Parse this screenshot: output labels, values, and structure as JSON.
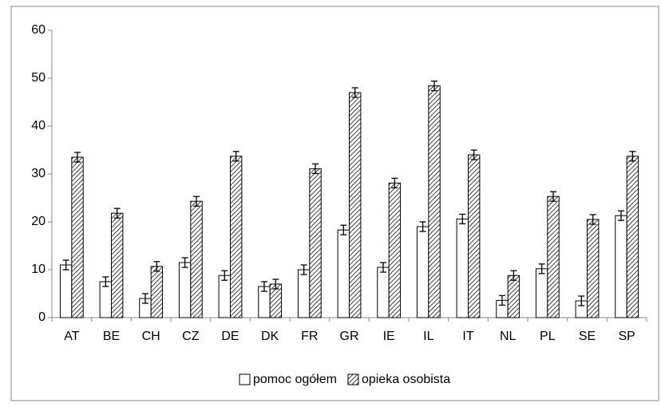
{
  "chart_data": {
    "type": "bar",
    "categories": [
      "AT",
      "BE",
      "CH",
      "CZ",
      "DE",
      "DK",
      "FR",
      "GR",
      "IE",
      "IL",
      "IT",
      "NL",
      "PL",
      "SE",
      "SP"
    ],
    "series": [
      {
        "name": "pomoc ogółem",
        "color": "#ffffff",
        "hatch": false,
        "values": [
          11,
          7.5,
          4,
          11.5,
          8.8,
          6.5,
          10,
          18.3,
          10.5,
          19,
          20.6,
          3.6,
          10.2,
          3.5,
          21.3
        ],
        "errors": [
          1,
          1,
          1,
          1,
          1,
          1,
          1,
          1,
          1,
          1,
          1,
          1,
          1,
          1,
          1
        ]
      },
      {
        "name": "opieka osobista",
        "color": "#000000",
        "hatch": true,
        "values": [
          33.5,
          21.8,
          10.7,
          24.3,
          33.7,
          7,
          31.1,
          47,
          28.1,
          48.4,
          34,
          8.8,
          25.3,
          20.5,
          33.7
        ],
        "errors": [
          1,
          1,
          1,
          1,
          1,
          1,
          1,
          1,
          1,
          1,
          1,
          1,
          1,
          1,
          1
        ]
      }
    ],
    "ylim": [
      0,
      60
    ],
    "yticks": [
      0,
      10,
      20,
      30,
      40,
      50,
      60
    ],
    "grid": false,
    "legend": "bottom"
  }
}
